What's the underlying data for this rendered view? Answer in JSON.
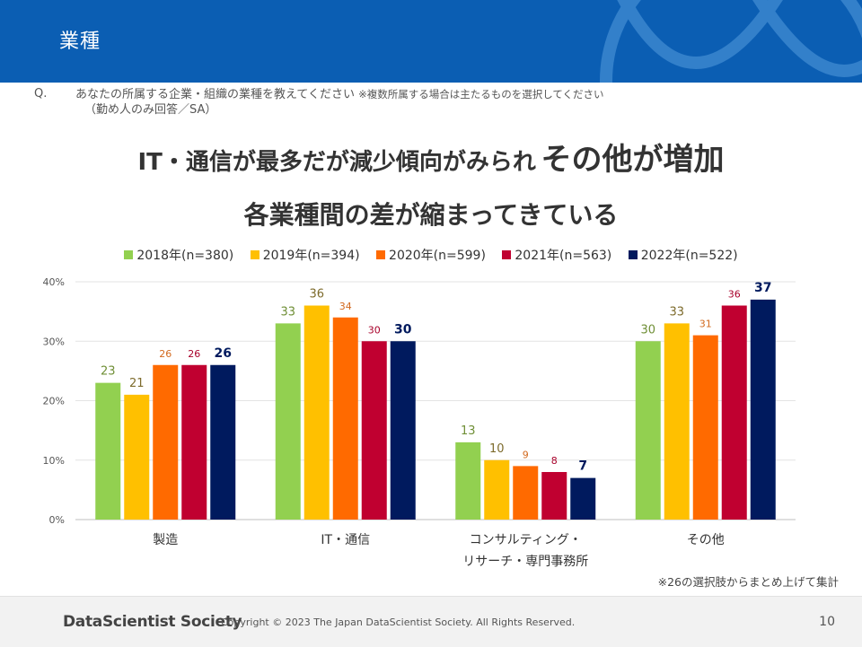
{
  "header": {
    "title": "業種"
  },
  "question": {
    "mark": "Q.",
    "text": "あなたの所属する企業・組織の業種を教えてください",
    "note": "※複数所属する場合は主たるものを選択してください",
    "sub": "（勤め人のみ回答／SA）"
  },
  "headline": {
    "main": "IT・通信が最多だが減少傾向がみられ",
    "emphasis": "その他が増加",
    "sub": "各業種間の差が縮まってきている"
  },
  "footnote": "※26の選択肢からまとめ上げて集計",
  "footer": {
    "brand": "DataScientist Society",
    "copyright": "Copyright © 2023  The Japan DataScientist Society. All Rights Reserved.",
    "page": "10"
  },
  "chart_data": {
    "type": "bar",
    "categories": [
      {
        "lines": [
          "製造"
        ]
      },
      {
        "lines": [
          "IT・通信"
        ]
      },
      {
        "lines": [
          "コンサルティング・",
          "リサーチ・専門事務所"
        ]
      },
      {
        "lines": [
          "その他"
        ]
      }
    ],
    "series": [
      {
        "name": "2018年(n=380)",
        "color": "#92d050",
        "labelColor": "#6f8f36",
        "values": [
          23,
          33,
          13,
          30
        ]
      },
      {
        "name": "2019年(n=394)",
        "color": "#ffc000",
        "labelColor": "#7d6b2c",
        "values": [
          21,
          36,
          10,
          33
        ]
      },
      {
        "name": "2020年(n=599)",
        "color": "#ff6a00",
        "labelColor": "#d2691e",
        "values": [
          26,
          34,
          9,
          31
        ]
      },
      {
        "name": "2021年(n=563)",
        "color": "#c00030",
        "labelColor": "#a8002a",
        "values": [
          26,
          30,
          8,
          36
        ]
      },
      {
        "name": "2022年(n=522)",
        "color": "#001a5e",
        "labelColor": "#001a5e",
        "values": [
          26,
          30,
          7,
          37
        ]
      }
    ],
    "yticks": [
      "0%",
      "10%",
      "20%",
      "30%",
      "40%"
    ],
    "ylim": [
      0,
      40
    ],
    "grid": true,
    "legend_position": "top"
  }
}
